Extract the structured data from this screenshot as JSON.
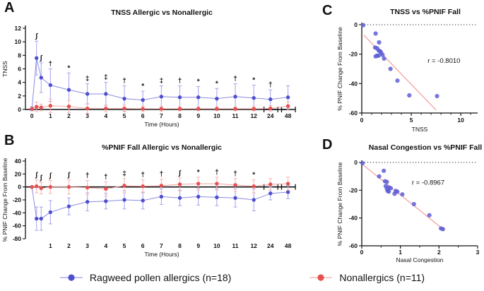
{
  "figure": {
    "panel_labels": {
      "a": "A",
      "b": "B",
      "c": "C",
      "d": "D"
    },
    "legend": [
      {
        "label": "Ragweed pollen allergics (n=18)",
        "color": "#4f4fce",
        "line_color": "#9d9dec"
      },
      {
        "label": "Nonallergics (n=11)",
        "color": "#e85050",
        "line_color": "#f5aaaa"
      }
    ]
  },
  "chart_data": [
    {
      "id": "A",
      "type": "line",
      "title": "TNSS Allergic vs Nonallergic",
      "xlabel": "Time (Hours)",
      "ylabel": "TNSS",
      "ylim": [
        0,
        12
      ],
      "yticks": [
        0,
        2,
        4,
        6,
        8,
        10,
        12
      ],
      "x": [
        0,
        0.25,
        0.5,
        1,
        2,
        3,
        4,
        5,
        6,
        7,
        8,
        9,
        10,
        11,
        12,
        24,
        48
      ],
      "xtick_labels": [
        "0",
        "",
        "",
        "1",
        "2",
        "3",
        "4",
        "5",
        "6",
        "7",
        "8",
        "9",
        "10",
        "11",
        "12",
        "24",
        "48"
      ],
      "sig_symbols": [
        "",
        "∫",
        "∫",
        "†",
        "*",
        "‡",
        "‡",
        "†",
        "*",
        "‡",
        "†",
        "*",
        "*",
        "†",
        "*",
        "†",
        ""
      ],
      "sig_above_series": 0,
      "axis_break_after_hour_12": true,
      "series": [
        {
          "name": "Ragweed pollen allergics (n=18)",
          "marker_color": "#4f4fce",
          "line_color": "#8c8ce0",
          "err_color": "#a3a3ec",
          "values": [
            0.1,
            7.6,
            4.7,
            3.6,
            2.9,
            2.3,
            2.3,
            1.6,
            1.4,
            1.9,
            1.8,
            1.8,
            1.6,
            1.9,
            1.7,
            1.5,
            1.8
          ],
          "err": [
            0.3,
            2.5,
            2.2,
            2.4,
            2.5,
            1.5,
            1.7,
            1.9,
            1.3,
            1.6,
            1.7,
            1.6,
            1.5,
            1.9,
            1.9,
            1.4,
            1.7
          ]
        },
        {
          "name": "Nonallergics (n=11)",
          "marker_color": "#e85050",
          "line_color": "#f2a2a2",
          "err_color": "#f6b3b3",
          "values": [
            0.1,
            0.4,
            0.3,
            0.55,
            0.45,
            0.15,
            0.15,
            0.15,
            0.1,
            0.1,
            0.1,
            0.1,
            0.1,
            0.1,
            0.1,
            0.15,
            0.5
          ],
          "err": [
            0.2,
            0.7,
            0.5,
            1.0,
            0.9,
            0.7,
            0.5,
            0.5,
            0.4,
            0.4,
            0.3,
            0.3,
            0.3,
            0.3,
            0.3,
            0.4,
            0.6
          ]
        }
      ]
    },
    {
      "id": "B",
      "type": "line",
      "title": "%PNIF Fall Allergic vs Nonallergic",
      "xlabel": "Time (Hours)",
      "ylabel": "% PNIF Change From Baseline",
      "ylim": [
        -80,
        40
      ],
      "yticks": [
        -80,
        -60,
        -40,
        -20,
        0,
        20,
        40
      ],
      "x": [
        0,
        0.25,
        0.5,
        1,
        2,
        3,
        4,
        5,
        6,
        7,
        8,
        9,
        10,
        11,
        12,
        24,
        48
      ],
      "xtick_labels": [
        "",
        "",
        "",
        "1",
        "2",
        "3",
        "4",
        "5",
        "6",
        "7",
        "8",
        "9",
        "10",
        "11",
        "12",
        "24",
        "48"
      ],
      "sig_symbols": [
        "",
        "∫",
        "∫",
        "∫",
        "∫",
        "†",
        "†",
        "‡",
        "†",
        "†",
        "∫",
        "*",
        "†",
        "†",
        "*",
        "",
        ""
      ],
      "sig_above_series": 1,
      "axis_break_after_hour_12": true,
      "series": [
        {
          "name": "Ragweed pollen allergics (n=18)",
          "marker_color": "#4f4fce",
          "line_color": "#8c8ce0",
          "err_color": "#a3a3ec",
          "values": [
            0,
            -49,
            -49,
            -39,
            -30,
            -23,
            -22,
            -20,
            -21,
            -15,
            -17,
            -15,
            -16,
            -17,
            -20,
            -10,
            -8
          ],
          "err": [
            1,
            18,
            18,
            18,
            13,
            14,
            12,
            14,
            13,
            12,
            12,
            13,
            13,
            14,
            17,
            10,
            10
          ]
        },
        {
          "name": "Nonallergics (n=11)",
          "marker_color": "#e85050",
          "line_color": "#f2a2a2",
          "err_color": "#f6b3b3",
          "values": [
            0,
            1,
            -2,
            0,
            0,
            -1,
            -3,
            2,
            1,
            2,
            4,
            5,
            5,
            3,
            1,
            4,
            5
          ],
          "err": [
            1,
            10,
            9,
            10,
            11,
            11,
            11,
            11,
            10,
            10,
            10,
            10,
            10,
            10,
            10,
            9,
            10
          ]
        }
      ]
    },
    {
      "id": "C",
      "type": "scatter",
      "title": "TNSS vs %PNIF Fall",
      "xlabel": "TNSS",
      "ylabel": "% PNIF Change From Baseline",
      "xlim": [
        0,
        11.7
      ],
      "xticks": [
        0,
        5,
        10
      ],
      "x_minor_step": 1,
      "ylim": [
        -60,
        0
      ],
      "yticks": [
        0,
        -20,
        -40,
        -60
      ],
      "zero_line_dotted": true,
      "r_label": "r = -0.8010",
      "r_label_pos": [
        8.3,
        -26
      ],
      "point_color": "#5e5ed6",
      "trend_color": "#f59c9c",
      "trend": [
        [
          0.2,
          -7
        ],
        [
          7.5,
          -58
        ]
      ],
      "points": [
        [
          0.15,
          -0.3
        ],
        [
          1.4,
          -6
        ],
        [
          1.75,
          -12
        ],
        [
          1.35,
          -15.5
        ],
        [
          1.55,
          -16
        ],
        [
          1.7,
          -17.5
        ],
        [
          1.85,
          -18
        ],
        [
          1.95,
          -19
        ],
        [
          1.4,
          -21.5
        ],
        [
          1.55,
          -21
        ],
        [
          1.7,
          -21
        ],
        [
          2.1,
          -20.5
        ],
        [
          2.25,
          -23
        ],
        [
          2.9,
          -30
        ],
        [
          3.6,
          -38
        ],
        [
          4.8,
          -48
        ],
        [
          7.6,
          -48.5
        ]
      ]
    },
    {
      "id": "D",
      "type": "scatter",
      "title": "Nasal Congestion vs %PNIF Fall",
      "xlabel": "Nasal Congestion",
      "ylabel": "% PNIF Change From Baseline",
      "xlim": [
        0,
        3
      ],
      "xticks": [
        0,
        1,
        2,
        3
      ],
      "x_minor_step": 0.5,
      "ylim": [
        -60,
        0
      ],
      "yticks": [
        0,
        -20,
        -40,
        -60
      ],
      "zero_line_dotted": true,
      "r_label": "r = -0.8967",
      "r_label_pos": [
        1.72,
        -16
      ],
      "point_color": "#5e5ed6",
      "trend_color": "#f59c9c",
      "trend": [
        [
          0.0,
          -1
        ],
        [
          2.15,
          -49
        ]
      ],
      "points": [
        [
          0.02,
          -0.5
        ],
        [
          0.45,
          -10
        ],
        [
          0.57,
          -6
        ],
        [
          0.6,
          -13.5
        ],
        [
          0.62,
          -17
        ],
        [
          0.65,
          -14
        ],
        [
          0.65,
          -19
        ],
        [
          0.67,
          -20.5
        ],
        [
          0.7,
          -18
        ],
        [
          0.7,
          -21
        ],
        [
          0.75,
          -18.5
        ],
        [
          0.85,
          -22.5
        ],
        [
          0.88,
          -20.5
        ],
        [
          0.92,
          -21
        ],
        [
          1.05,
          -23
        ],
        [
          1.35,
          -30
        ],
        [
          1.75,
          -38
        ],
        [
          2.05,
          -47.5
        ],
        [
          2.1,
          -48
        ]
      ]
    }
  ]
}
